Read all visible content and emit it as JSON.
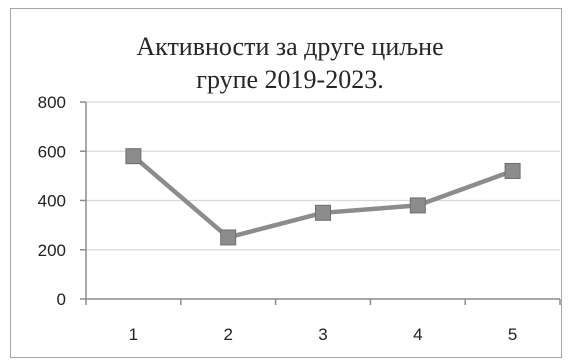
{
  "chart_data": {
    "type": "line",
    "title_lines": [
      "Активности за друге циљне",
      "групе 2019-2023."
    ],
    "x": [
      "1",
      "2",
      "3",
      "4",
      "5"
    ],
    "series": [
      {
        "values": [
          580,
          250,
          350,
          380,
          520
        ]
      }
    ],
    "ylim": [
      0,
      800
    ],
    "yticks": [
      "0",
      "200",
      "400",
      "600",
      "800"
    ],
    "grid": true,
    "legend": "none",
    "colors": {
      "line": "#8c8c8c",
      "marker": "#8c8c8c",
      "grid": "#d9d9d9",
      "axis": "#8c8c8c"
    }
  }
}
